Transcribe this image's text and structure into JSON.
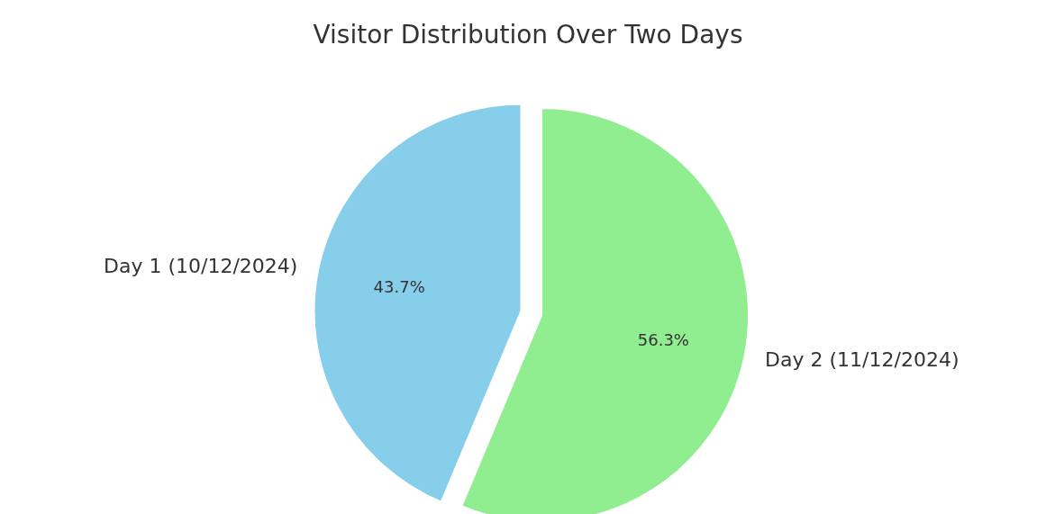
{
  "chart_data": {
    "type": "pie",
    "title": "Visitor Distribution Over Two Days",
    "categories": [
      "Day 1 (10/12/2024)",
      "Day 2 (11/12/2024)"
    ],
    "values": [
      43.7,
      56.3
    ],
    "value_labels": [
      "43.7%",
      "56.3%"
    ],
    "colors": [
      "#87ceeb",
      "#90ee90"
    ]
  }
}
